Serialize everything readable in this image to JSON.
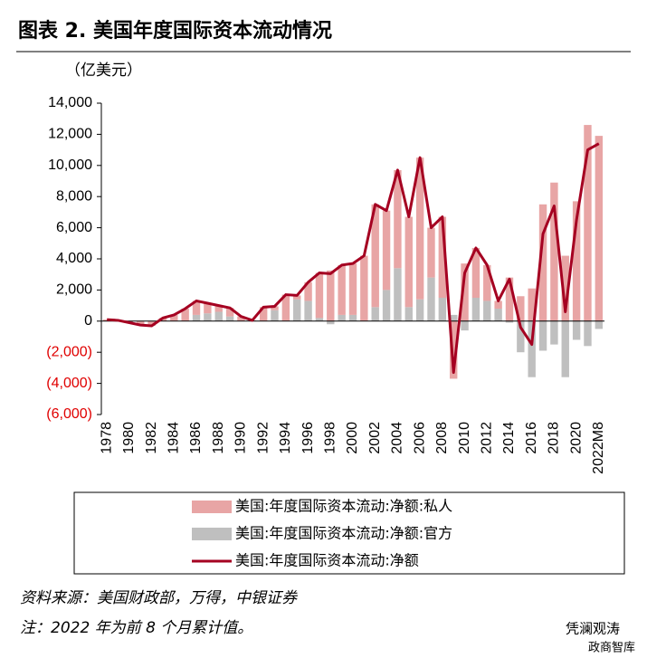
{
  "chart_data": {
    "type": "stacked-bar-line",
    "title": "图表 2. 美国年度国际资本流动情况",
    "unit_label": "（亿美元）",
    "categories": [
      "1978",
      null,
      "1980",
      null,
      "1982",
      null,
      "1984",
      null,
      "1986",
      null,
      "1988",
      null,
      "1990",
      null,
      "1992",
      null,
      "1994",
      null,
      "1996",
      null,
      "1998",
      null,
      "2000",
      null,
      "2002",
      null,
      "2004",
      null,
      "2006",
      null,
      "2008",
      null,
      "2010",
      null,
      "2012",
      null,
      "2014",
      null,
      "2016",
      null,
      "2018",
      null,
      "2020",
      null,
      "2022M8"
    ],
    "series": [
      {
        "name": "美国:年度国际资本流动:净额:私人",
        "kind": "bar",
        "color": "#e8a5a5",
        "values": [
          100,
          50,
          -100,
          -250,
          -300,
          200,
          400,
          800,
          900,
          650,
          400,
          550,
          300,
          50,
          900,
          250,
          1700,
          250,
          1200,
          2900,
          3250,
          3200,
          3300,
          4200,
          6600,
          5100,
          6300,
          5800,
          9100,
          3200,
          5200,
          -3700,
          3700,
          3200,
          2300,
          500,
          2800,
          1600,
          2100,
          7500,
          8900,
          4200,
          7700,
          12600,
          11900
        ]
      },
      {
        "name": "美国:年度国际资本流动:净额:官方",
        "kind": "bar",
        "color": "#bfbfbf",
        "values": [
          0,
          0,
          0,
          0,
          0,
          0,
          0,
          0,
          400,
          500,
          600,
          300,
          0,
          0,
          0,
          700,
          0,
          1400,
          1300,
          200,
          -200,
          400,
          400,
          0,
          900,
          2000,
          3400,
          900,
          1400,
          2800,
          1500,
          400,
          -600,
          1500,
          1300,
          800,
          -100,
          -2000,
          -3600,
          -1900,
          -1500,
          -3600,
          -1200,
          -1600,
          -500
        ]
      },
      {
        "name": "美国:年度国际资本流动:净额",
        "kind": "line",
        "color": "#a50021",
        "values": [
          100,
          50,
          -100,
          -250,
          -300,
          200,
          400,
          800,
          1300,
          1150,
          1000,
          850,
          300,
          50,
          900,
          950,
          1700,
          1650,
          2500,
          3100,
          3050,
          3600,
          3700,
          4200,
          7500,
          7100,
          9700,
          6700,
          10500,
          6000,
          6700,
          -3300,
          3100,
          4700,
          3600,
          1300,
          2700,
          -400,
          -1500,
          5600,
          7400,
          600,
          6500,
          11000,
          11400
        ]
      }
    ],
    "ylim": [
      -6000,
      14000
    ],
    "yticks": [
      {
        "value": -6000,
        "label": "(6,000)"
      },
      {
        "value": -4000,
        "label": "(4,000)"
      },
      {
        "value": -2000,
        "label": "(2,000)"
      },
      {
        "value": 0,
        "label": "0"
      },
      {
        "value": 2000,
        "label": "2,000"
      },
      {
        "value": 4000,
        "label": "4,000"
      },
      {
        "value": 6000,
        "label": "6,000"
      },
      {
        "value": 8000,
        "label": "8,000"
      },
      {
        "value": 10000,
        "label": "10,000"
      },
      {
        "value": 12000,
        "label": "12,000"
      },
      {
        "value": 14000,
        "label": "14,000"
      }
    ],
    "negative_tick_color": "#e00000",
    "grid": false
  },
  "source": "资料来源：美国财政部，万得，中银证券",
  "note": "注：2022 年为前 8 个月累计值。",
  "watermark": {
    "name": "凭澜观涛",
    "sub": "政商智库"
  }
}
